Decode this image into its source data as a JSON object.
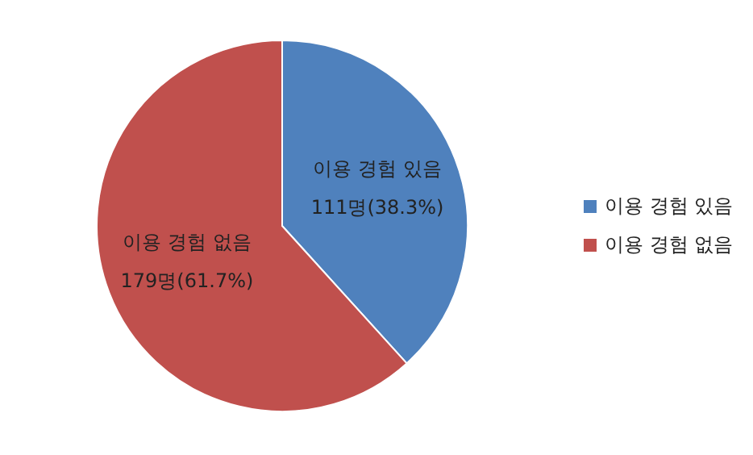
{
  "chart_data": {
    "type": "pie",
    "categories": [
      "이용 경험 있음",
      "이용 경험 없음"
    ],
    "values": [
      111,
      179
    ],
    "colors": [
      "#4f81bd",
      "#c0504d"
    ],
    "value_labels": [
      "111명(38.3%)",
      "179명(61.7%)"
    ],
    "legend": "right"
  }
}
